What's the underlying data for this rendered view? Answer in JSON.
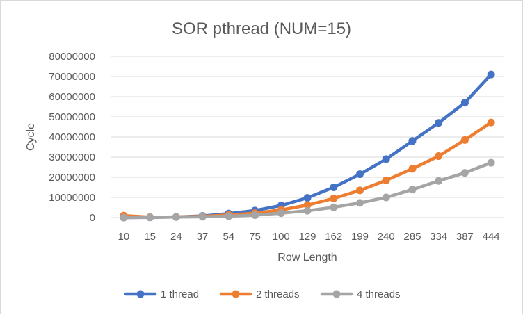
{
  "chart_data": {
    "type": "line",
    "title": "SOR pthread (NUM=15)",
    "xlabel": "Row Length",
    "ylabel": "Cycle",
    "ylim": [
      0,
      80000000
    ],
    "yticks": [
      "0",
      "10000000",
      "20000000",
      "30000000",
      "40000000",
      "50000000",
      "60000000",
      "70000000",
      "80000000"
    ],
    "grid": true,
    "legend_position": "bottom",
    "categories": [
      "10",
      "15",
      "24",
      "37",
      "54",
      "75",
      "100",
      "129",
      "162",
      "199",
      "240",
      "285",
      "334",
      "387",
      "444"
    ],
    "series": [
      {
        "name": "1 thread",
        "color": "#4472C4",
        "values": [
          0,
          100000,
          300000,
          800000,
          2000000,
          3500000,
          6000000,
          9800000,
          15000000,
          21500000,
          29000000,
          38000000,
          47000000,
          57000000,
          71000000
        ]
      },
      {
        "name": "2 threads",
        "color": "#ED7D31",
        "values": [
          1000000,
          200000,
          300000,
          600000,
          1300000,
          2200000,
          3800000,
          6200000,
          9500000,
          13500000,
          18500000,
          24200000,
          30500000,
          38500000,
          47200000
        ]
      },
      {
        "name": "4 threads",
        "color": "#A5A5A5",
        "values": [
          0,
          150000,
          250000,
          400000,
          700000,
          1200000,
          2200000,
          3400000,
          5100000,
          7300000,
          10000000,
          13900000,
          18200000,
          22200000,
          27200000
        ]
      }
    ]
  }
}
